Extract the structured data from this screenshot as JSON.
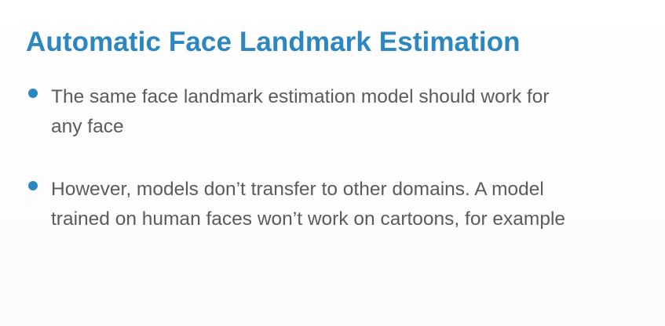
{
  "title": "Automatic Face Landmark Estimation",
  "bullets": [
    {
      "line1": "The same face landmark estimation model should work for",
      "line2": "any face"
    },
    {
      "line1": "However, models don’t transfer to other domains. A model",
      "line2": "trained on human faces won’t work on cartoons, for example"
    }
  ],
  "colors": {
    "accent": "#2c86c0",
    "body_text": "#5b5b5b",
    "background": "#ffffff"
  }
}
